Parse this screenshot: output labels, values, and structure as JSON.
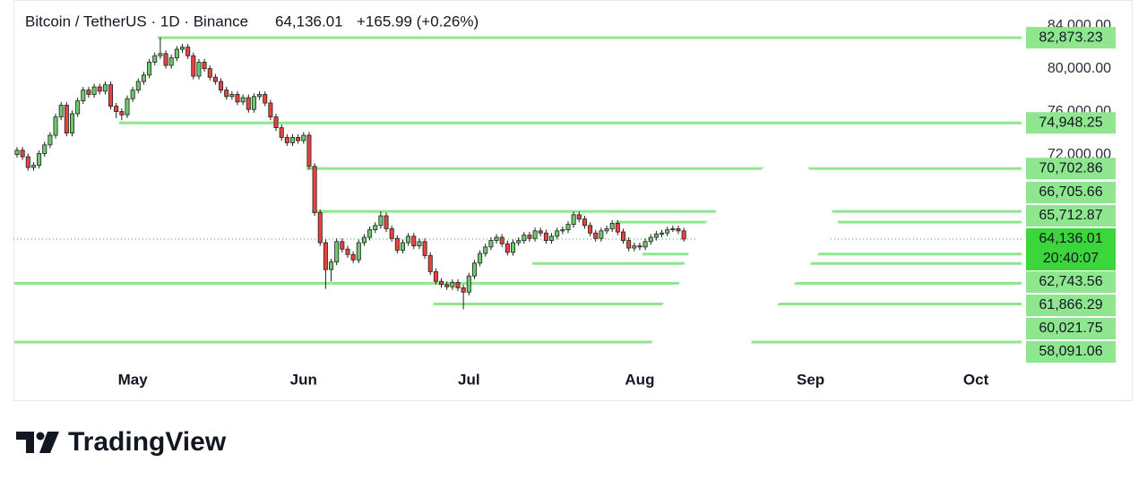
{
  "chart_data": {
    "type": "candlestick",
    "title": "Bitcoin / TetherUS · 1D · Binance",
    "price": "64,136.01",
    "change": "+165.99 (+0.26%)",
    "brand": "TradingView",
    "countdown": "20:40:07",
    "up_color": "#6cc96c",
    "down_color": "#e8433f",
    "level_color": "#8ee68e",
    "current_color": "#3ad63a",
    "xlim": [
      -0.65,
      198.54
    ],
    "ylim": [
      52636,
      86386
    ],
    "xticks": [
      {
        "value": 21,
        "label": "May"
      },
      {
        "value": 52,
        "label": "Jun"
      },
      {
        "value": 82,
        "label": "Jul"
      },
      {
        "value": 113,
        "label": "Aug"
      },
      {
        "value": 144,
        "label": "Sep"
      },
      {
        "value": 174,
        "label": "Oct"
      }
    ],
    "yticks": [
      {
        "value": 84000,
        "label": "84,000.00"
      },
      {
        "value": 80000,
        "label": "80,000.00"
      },
      {
        "value": 76000,
        "label": "76,000.00"
      },
      {
        "value": 72000,
        "label": "72,000.00"
      }
    ],
    "current_price": {
      "value": 64136.01,
      "label": "64,136.01"
    },
    "levels": [
      {
        "value": 82873.23,
        "label": "82,873.23",
        "start": 26
      },
      {
        "value": 74948.25,
        "label": "74,948.25",
        "start": 19
      },
      {
        "value": 70702.86,
        "label": "70,702.86",
        "start": 53
      },
      {
        "value": 66705.66,
        "label": "66,705.66",
        "start": 54
      },
      {
        "value": 65712.87,
        "label": "65,712.87",
        "start": 109
      },
      {
        "value": 62743.56,
        "label": "62,743.56",
        "start": 114
      },
      {
        "value": 61866.29,
        "label": "61,866.29",
        "start": 94
      },
      {
        "value": 60021.75,
        "label": "60,021.75",
        "start": 0
      },
      {
        "value": 58091.06,
        "label": "58,091.06",
        "start": 76
      },
      {
        "value": 54553,
        "start": 0
      }
    ],
    "ohlc": [
      [
        72000,
        72700,
        71700,
        72400
      ],
      [
        72400,
        72700,
        71500,
        71800
      ],
      [
        71800,
        72100,
        70500,
        70800
      ],
      [
        70800,
        71300,
        70500,
        71000
      ],
      [
        71000,
        72400,
        70700,
        72100
      ],
      [
        72100,
        73200,
        71800,
        72900
      ],
      [
        72900,
        74100,
        72600,
        73800
      ],
      [
        73800,
        75800,
        73500,
        75500
      ],
      [
        75500,
        76900,
        75200,
        76600
      ],
      [
        76600,
        76900,
        73700,
        74000
      ],
      [
        74000,
        76100,
        73700,
        75800
      ],
      [
        75800,
        77300,
        75500,
        77000
      ],
      [
        77000,
        78300,
        76700,
        78000
      ],
      [
        78000,
        78300,
        77300,
        77600
      ],
      [
        77600,
        78600,
        77300,
        78300
      ],
      [
        78300,
        78600,
        77600,
        77900
      ],
      [
        77900,
        78800,
        77600,
        78500
      ],
      [
        78500,
        78800,
        76200,
        76500
      ],
      [
        76500,
        76800,
        75400,
        76000
      ],
      [
        76000,
        76300,
        75200,
        75700
      ],
      [
        75700,
        77500,
        75400,
        77200
      ],
      [
        77200,
        78300,
        76900,
        78000
      ],
      [
        78000,
        79100,
        77700,
        78800
      ],
      [
        78800,
        79700,
        78500,
        79400
      ],
      [
        79400,
        80900,
        79100,
        80600
      ],
      [
        80600,
        81500,
        80300,
        81200
      ],
      [
        81200,
        82900,
        80900,
        81400
      ],
      [
        81400,
        81700,
        80000,
        80300
      ],
      [
        80300,
        81300,
        80000,
        81000
      ],
      [
        81000,
        82100,
        80700,
        81800
      ],
      [
        81800,
        82300,
        81500,
        82000
      ],
      [
        82000,
        82300,
        80900,
        81200
      ],
      [
        81200,
        81500,
        79000,
        79300
      ],
      [
        79300,
        80900,
        79000,
        80600
      ],
      [
        80600,
        80900,
        79700,
        80000
      ],
      [
        80000,
        80300,
        78900,
        79200
      ],
      [
        79200,
        79500,
        78500,
        78800
      ],
      [
        78800,
        79100,
        77700,
        78000
      ],
      [
        78000,
        78300,
        77100,
        77400
      ],
      [
        77400,
        77900,
        77100,
        77600
      ],
      [
        77600,
        77900,
        76600,
        76900
      ],
      [
        76900,
        77600,
        76600,
        77300
      ],
      [
        77300,
        77600,
        75900,
        76200
      ],
      [
        76200,
        77700,
        75900,
        77400
      ],
      [
        77400,
        77900,
        77100,
        77600
      ],
      [
        77600,
        77900,
        76500,
        76800
      ],
      [
        76800,
        77100,
        75200,
        75500
      ],
      [
        75500,
        75800,
        74200,
        74500
      ],
      [
        74500,
        74800,
        73300,
        73600
      ],
      [
        73600,
        73900,
        72800,
        73100
      ],
      [
        73100,
        73900,
        72800,
        73600
      ],
      [
        73600,
        73900,
        73000,
        73300
      ],
      [
        73300,
        74100,
        73000,
        73800
      ],
      [
        73800,
        74100,
        70600,
        70900
      ],
      [
        70900,
        71200,
        66300,
        66600
      ],
      [
        66600,
        66900,
        63500,
        63800
      ],
      [
        63800,
        64100,
        59500,
        61300
      ],
      [
        61300,
        62300,
        60200,
        62000
      ],
      [
        62000,
        64200,
        61700,
        63900
      ],
      [
        63900,
        64200,
        62900,
        63200
      ],
      [
        63200,
        63500,
        62400,
        62700
      ],
      [
        62700,
        63000,
        61900,
        62200
      ],
      [
        62200,
        64100,
        61900,
        63800
      ],
      [
        63800,
        64600,
        63500,
        64300
      ],
      [
        64300,
        65300,
        64000,
        65000
      ],
      [
        65000,
        65700,
        64700,
        65400
      ],
      [
        65400,
        66700,
        65100,
        66300
      ],
      [
        66300,
        66600,
        64800,
        65100
      ],
      [
        65100,
        65400,
        63900,
        64200
      ],
      [
        64200,
        64500,
        62800,
        63100
      ],
      [
        63100,
        64100,
        62800,
        63800
      ],
      [
        63800,
        64700,
        63500,
        64400
      ],
      [
        64400,
        64700,
        63200,
        63500
      ],
      [
        63500,
        64200,
        63200,
        63900
      ],
      [
        63900,
        64200,
        62300,
        62600
      ],
      [
        62600,
        62900,
        60800,
        61100
      ],
      [
        61100,
        61400,
        59900,
        60200
      ],
      [
        60200,
        60500,
        59600,
        59900
      ],
      [
        59900,
        60200,
        59400,
        59700
      ],
      [
        59700,
        60400,
        59400,
        60100
      ],
      [
        60100,
        60400,
        59300,
        59600
      ],
      [
        59600,
        59900,
        57600,
        59200
      ],
      [
        59200,
        61000,
        58900,
        60700
      ],
      [
        60700,
        62200,
        60400,
        61900
      ],
      [
        61900,
        63100,
        61600,
        62800
      ],
      [
        62800,
        63700,
        62500,
        63400
      ],
      [
        63400,
        64300,
        63100,
        64000
      ],
      [
        64000,
        64600,
        63700,
        64300
      ],
      [
        64300,
        64600,
        63400,
        63700
      ],
      [
        63700,
        64000,
        62600,
        62900
      ],
      [
        62900,
        64100,
        62600,
        63800
      ],
      [
        63800,
        64300,
        63500,
        64000
      ],
      [
        64000,
        64800,
        63700,
        64500
      ],
      [
        64500,
        64800,
        63900,
        64200
      ],
      [
        64200,
        65200,
        63900,
        64900
      ],
      [
        64900,
        65200,
        64400,
        64700
      ],
      [
        64700,
        65000,
        63700,
        64000
      ],
      [
        64000,
        64700,
        63700,
        64400
      ],
      [
        64400,
        65200,
        64100,
        64900
      ],
      [
        64900,
        65300,
        64600,
        65000
      ],
      [
        65000,
        65800,
        64700,
        65500
      ],
      [
        65500,
        66700,
        65200,
        66400
      ],
      [
        66400,
        66700,
        65700,
        66000
      ],
      [
        66000,
        66300,
        65100,
        65400
      ],
      [
        65400,
        65700,
        64400,
        64700
      ],
      [
        64700,
        65000,
        63900,
        64200
      ],
      [
        64200,
        65200,
        63900,
        64900
      ],
      [
        64900,
        65400,
        64600,
        65100
      ],
      [
        65100,
        65900,
        64800,
        65600
      ],
      [
        65600,
        65900,
        64500,
        64800
      ],
      [
        64800,
        65100,
        63700,
        64000
      ],
      [
        64000,
        64300,
        63000,
        63300
      ],
      [
        63300,
        63800,
        63000,
        63500
      ],
      [
        63500,
        63800,
        63100,
        63400
      ],
      [
        63400,
        64200,
        63100,
        63900
      ],
      [
        63900,
        64600,
        63600,
        64300
      ],
      [
        64300,
        64900,
        64000,
        64600
      ],
      [
        64600,
        65000,
        64300,
        64700
      ],
      [
        64700,
        65300,
        64400,
        65000
      ],
      [
        65000,
        65400,
        64800,
        65100
      ],
      [
        65100,
        65400,
        64600,
        64900
      ],
      [
        64900,
        65200,
        63900,
        64136.01
      ]
    ]
  }
}
